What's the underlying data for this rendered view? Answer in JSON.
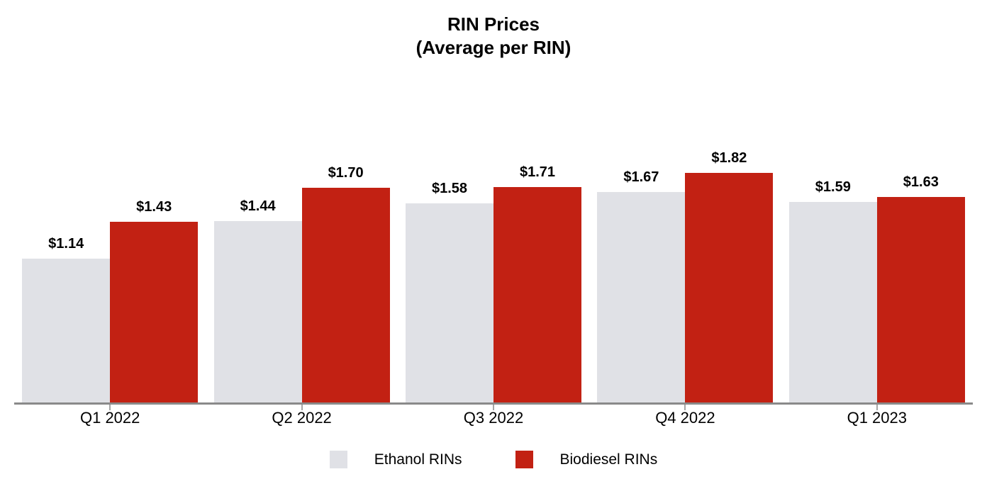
{
  "chart_data": {
    "type": "bar",
    "title": "RIN Prices",
    "subtitle": "(Average per RIN)",
    "categories": [
      "Q1 2022",
      "Q2 2022",
      "Q3 2022",
      "Q4 2022",
      "Q1 2023"
    ],
    "series": [
      {
        "name": "Ethanol RINs",
        "color": "#E0E1E6",
        "values": [
          1.14,
          1.44,
          1.58,
          1.67,
          1.59
        ],
        "labels": [
          "$1.14",
          "$1.44",
          "$1.58",
          "$1.67",
          "$1.59"
        ]
      },
      {
        "name": "Biodiesel RINs",
        "color": "#C22113",
        "values": [
          1.43,
          1.7,
          1.71,
          1.82,
          1.63
        ],
        "labels": [
          "$1.43",
          "$1.70",
          "$1.71",
          "$1.82",
          "$1.63"
        ]
      }
    ],
    "value_prefix": "$",
    "ylim": [
      0,
      2.14
    ],
    "grid": false,
    "y_axis_visible": false,
    "legend_position": "bottom",
    "axis_line_color": "#8a8a8a",
    "tick_color": "#a6a6a6",
    "text_color": "#000000"
  }
}
